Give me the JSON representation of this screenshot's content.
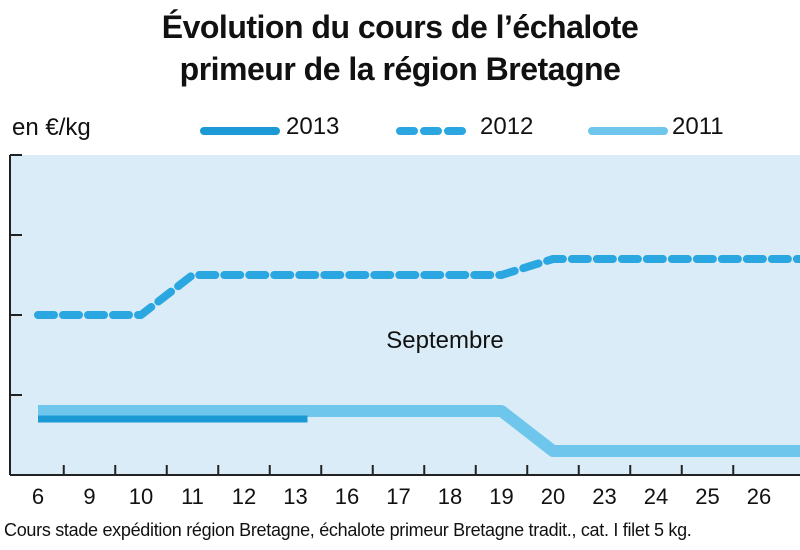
{
  "chart_data": {
    "type": "line",
    "title_line1": "Évolution du cours de l’échalote",
    "title_line2": "primeur de la région Bretagne",
    "ylabel": "en €/kg",
    "categories": [
      "6",
      "9",
      "10",
      "11",
      "12",
      "13",
      "16",
      "17",
      "18",
      "19",
      "20",
      "23",
      "24",
      "25",
      "26"
    ],
    "annotation": "Septembre",
    "caption": "Cours stade expédition région Bretagne, échalote primeur Bretagne tradit., cat. I filet 5 kg.",
    "ylim": [
      0,
      4
    ],
    "series": [
      {
        "name": "2013",
        "style": "solid",
        "color": "#1b9ad6",
        "values": [
          0.7,
          0.7,
          0.7,
          0.7,
          0.7,
          0.7,
          null,
          null,
          null,
          null,
          null,
          null,
          null,
          null,
          null
        ]
      },
      {
        "name": "2012",
        "style": "dashed",
        "color": "#2aa6e0",
        "values": [
          2.0,
          2.0,
          2.0,
          2.5,
          2.5,
          2.5,
          2.5,
          2.5,
          2.5,
          2.5,
          2.7,
          2.7,
          2.7,
          2.7,
          2.7
        ]
      },
      {
        "name": "2011",
        "style": "solid",
        "color": "#6fc6ec",
        "values": [
          0.8,
          0.8,
          0.8,
          0.8,
          0.8,
          0.8,
          0.8,
          0.8,
          0.8,
          0.8,
          0.3,
          0.3,
          0.3,
          0.3,
          0.3
        ]
      }
    ],
    "background_color": "#d9ecf7"
  }
}
